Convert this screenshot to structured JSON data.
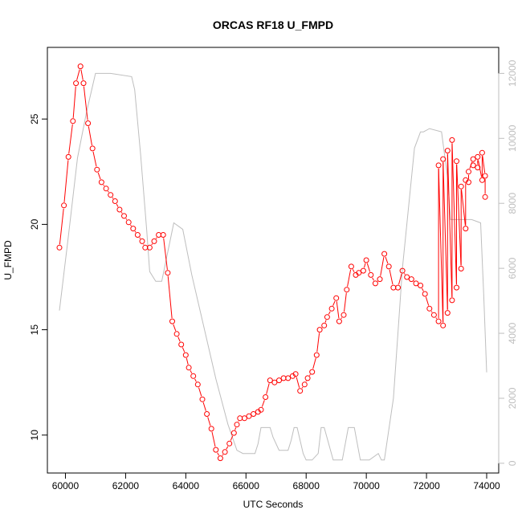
{
  "chart_data": {
    "type": "line",
    "title": "ORCAS RF18 U_FMPD",
    "xlabel": "UTC Seconds",
    "ylabel": "U_FMPD",
    "xlim": [
      59400,
      74400
    ],
    "ylim": [
      8.2,
      28.4
    ],
    "y2lim": [
      -300,
      12800
    ],
    "x_ticks": [
      60000,
      62000,
      64000,
      66000,
      68000,
      70000,
      72000,
      74000
    ],
    "y_ticks": [
      10,
      15,
      20,
      25
    ],
    "y2_ticks": [
      0,
      2000,
      4000,
      6000,
      8000,
      10000,
      12000
    ],
    "series": [
      {
        "color": "#ff0000",
        "style": "points-and-lines",
        "axis": "left",
        "x": [
          59800,
          59950,
          60100,
          60250,
          60350,
          60500,
          60600,
          60750,
          60900,
          61050,
          61200,
          61350,
          61500,
          61650,
          61800,
          61950,
          62100,
          62250,
          62400,
          62550,
          62650,
          62800,
          62950,
          63100,
          63250,
          63400,
          63550,
          63700,
          63850,
          64000,
          64100,
          64250,
          64400,
          64550,
          64700,
          64850,
          65000,
          65150,
          65300,
          65450,
          65600,
          65700,
          65800,
          65950,
          66100,
          66250,
          66400,
          66500,
          66650,
          66800,
          66950,
          67100,
          67250,
          67400,
          67550,
          67650,
          67800,
          67950,
          68050,
          68200,
          68350,
          68450,
          68600,
          68700,
          68850,
          69000,
          69100,
          69250,
          69350,
          69500,
          69650,
          69750,
          69900,
          70000,
          70150,
          70300,
          70450,
          70600,
          70750,
          70900,
          71050,
          71200,
          71350,
          71500,
          71650,
          71800,
          71950,
          72100,
          72250,
          72400,
          72550,
          72700,
          72850,
          73000,
          73150,
          73300,
          73400,
          73550,
          73700,
          73850,
          73950
        ],
        "y": [
          18.9,
          20.9,
          23.2,
          24.9,
          26.7,
          27.5,
          26.7,
          24.8,
          23.6,
          22.6,
          22.0,
          21.7,
          21.4,
          21.1,
          20.7,
          20.4,
          20.1,
          19.8,
          19.5,
          19.2,
          18.9,
          18.9,
          19.2,
          19.5,
          19.5,
          17.7,
          15.4,
          14.8,
          14.3,
          13.8,
          13.2,
          12.8,
          12.4,
          11.7,
          11.0,
          10.3,
          9.3,
          8.9,
          9.2,
          9.6,
          10.1,
          10.5,
          10.8,
          10.8,
          10.9,
          11.0,
          11.1,
          11.2,
          11.8,
          12.6,
          12.5,
          12.6,
          12.7,
          12.7,
          12.8,
          12.9,
          12.1,
          12.4,
          12.7,
          13.0,
          13.8,
          15.0,
          15.2,
          15.6,
          16.0,
          16.5,
          15.4,
          15.7,
          16.9,
          18.0,
          17.6,
          17.7,
          17.8,
          18.3,
          17.6,
          17.2,
          17.4,
          18.6,
          18.0,
          17.0,
          17.0,
          17.8,
          17.5,
          17.4,
          17.2,
          17.1,
          16.7,
          16.0,
          15.7,
          15.4,
          15.2,
          15.8,
          16.4,
          17.0,
          17.9,
          19.8,
          22.0,
          23.1,
          22.7,
          22.1,
          22.3
        ],
        "x_tail": [
          72400,
          72550,
          72700,
          72850,
          73000,
          73150,
          73300,
          73400,
          73550,
          73700,
          73850,
          73950
        ],
        "y_tail": [
          22.8,
          23.1,
          23.5,
          24.0,
          23.0,
          21.8,
          22.1,
          22.5,
          22.8,
          23.2,
          23.4,
          21.3
        ]
      },
      {
        "color": "#bebebe",
        "style": "line",
        "axis": "right",
        "x": [
          59800,
          60100,
          60400,
          60700,
          61000,
          61500,
          62200,
          62300,
          62500,
          62700,
          62800,
          63000,
          63200,
          63400,
          63600,
          63900,
          64200,
          64600,
          65000,
          65400,
          65700,
          65900,
          66300,
          66400,
          66500,
          66800,
          66900,
          67100,
          67400,
          67500,
          67600,
          67700,
          67900,
          68000,
          68200,
          68400,
          68500,
          68600,
          68900,
          69000,
          69200,
          69400,
          69500,
          69600,
          69800,
          69900,
          70100,
          70400,
          70500,
          70600,
          70900,
          71200,
          71600,
          71800,
          71900,
          72100,
          72500,
          72700,
          72800,
          73000,
          73300,
          73500,
          73800,
          73900,
          74000
        ],
        "y": [
          4700,
          7000,
          9400,
          10800,
          12000,
          12000,
          11900,
          11500,
          9500,
          7200,
          5900,
          5600,
          5600,
          6500,
          7400,
          7200,
          5800,
          4200,
          2600,
          1200,
          400,
          300,
          300,
          600,
          1100,
          1100,
          800,
          400,
          400,
          700,
          1100,
          1100,
          300,
          100,
          100,
          300,
          1100,
          1100,
          100,
          100,
          100,
          1100,
          1100,
          1100,
          100,
          100,
          100,
          300,
          100,
          100,
          2000,
          6000,
          9700,
          10200,
          10200,
          10300,
          10200,
          8800,
          7500,
          7500,
          7500,
          7500,
          7400,
          5200,
          2800
        ]
      }
    ]
  }
}
